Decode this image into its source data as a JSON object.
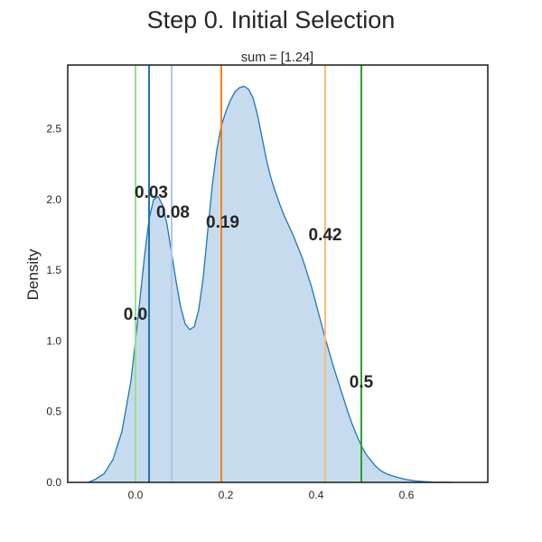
{
  "chart_data": {
    "type": "area",
    "title": "Step 0. Initial Selection",
    "subtitle": "sum = [1.24]",
    "xlabel": "",
    "ylabel": "Density",
    "xlim": [
      -0.15,
      0.78
    ],
    "ylim": [
      0,
      2.95
    ],
    "xticks": [
      0.0,
      0.2,
      0.4,
      0.6
    ],
    "xtick_labels": [
      "0.0",
      "0.2",
      "0.4",
      "0.6"
    ],
    "yticks": [
      0.0,
      0.5,
      1.0,
      1.5,
      2.0,
      2.5
    ],
    "ytick_labels": [
      "0.0",
      "0.5",
      "1.0",
      "1.5",
      "2.0",
      "2.5"
    ],
    "grid": false,
    "curve_color": "#1f77b4",
    "fill_color": "#c6dbed",
    "density_curve": {
      "x": [
        -0.105,
        -0.09,
        -0.07,
        -0.05,
        -0.03,
        -0.01,
        0.0,
        0.01,
        0.02,
        0.03,
        0.04,
        0.05,
        0.06,
        0.07,
        0.08,
        0.09,
        0.1,
        0.11,
        0.12,
        0.13,
        0.14,
        0.15,
        0.16,
        0.17,
        0.18,
        0.19,
        0.2,
        0.21,
        0.22,
        0.23,
        0.24,
        0.25,
        0.26,
        0.27,
        0.28,
        0.29,
        0.3,
        0.31,
        0.32,
        0.33,
        0.34,
        0.35,
        0.36,
        0.37,
        0.38,
        0.39,
        0.4,
        0.41,
        0.42,
        0.43,
        0.44,
        0.45,
        0.46,
        0.47,
        0.48,
        0.49,
        0.5,
        0.51,
        0.52,
        0.53,
        0.54,
        0.55,
        0.56,
        0.58,
        0.6,
        0.62,
        0.64,
        0.66,
        0.68,
        0.7
      ],
      "y": [
        0.0,
        0.02,
        0.06,
        0.16,
        0.36,
        0.72,
        1.0,
        1.3,
        1.6,
        1.86,
        2.0,
        2.02,
        1.96,
        1.82,
        1.62,
        1.42,
        1.24,
        1.12,
        1.08,
        1.1,
        1.22,
        1.45,
        1.78,
        2.1,
        2.35,
        2.52,
        2.62,
        2.7,
        2.76,
        2.79,
        2.8,
        2.78,
        2.72,
        2.6,
        2.44,
        2.28,
        2.15,
        2.05,
        1.96,
        1.88,
        1.81,
        1.74,
        1.66,
        1.58,
        1.48,
        1.38,
        1.26,
        1.14,
        1.02,
        0.91,
        0.8,
        0.7,
        0.6,
        0.5,
        0.41,
        0.33,
        0.26,
        0.2,
        0.16,
        0.12,
        0.09,
        0.07,
        0.055,
        0.035,
        0.02,
        0.01,
        0.005,
        0.002,
        0.001,
        0.0
      ]
    },
    "vertical_lines": [
      {
        "x": 0.0,
        "color": "#98df8a"
      },
      {
        "x": 0.03,
        "color": "#1f77b4"
      },
      {
        "x": 0.08,
        "color": "#aec7e8"
      },
      {
        "x": 0.19,
        "color": "#ff7f0e"
      },
      {
        "x": 0.42,
        "color": "#ffbb78"
      },
      {
        "x": 0.5,
        "color": "#2ca02c"
      }
    ],
    "annotations": [
      {
        "text": "0.0",
        "x": 0.0,
        "y": 1.15
      },
      {
        "text": "0.03",
        "x": 0.035,
        "y": 2.01
      },
      {
        "text": "0.08",
        "x": 0.083,
        "y": 1.87
      },
      {
        "text": "0.19",
        "x": 0.193,
        "y": 1.8
      },
      {
        "text": "0.42",
        "x": 0.42,
        "y": 1.71
      },
      {
        "text": "0.5",
        "x": 0.5,
        "y": 0.67
      }
    ]
  }
}
